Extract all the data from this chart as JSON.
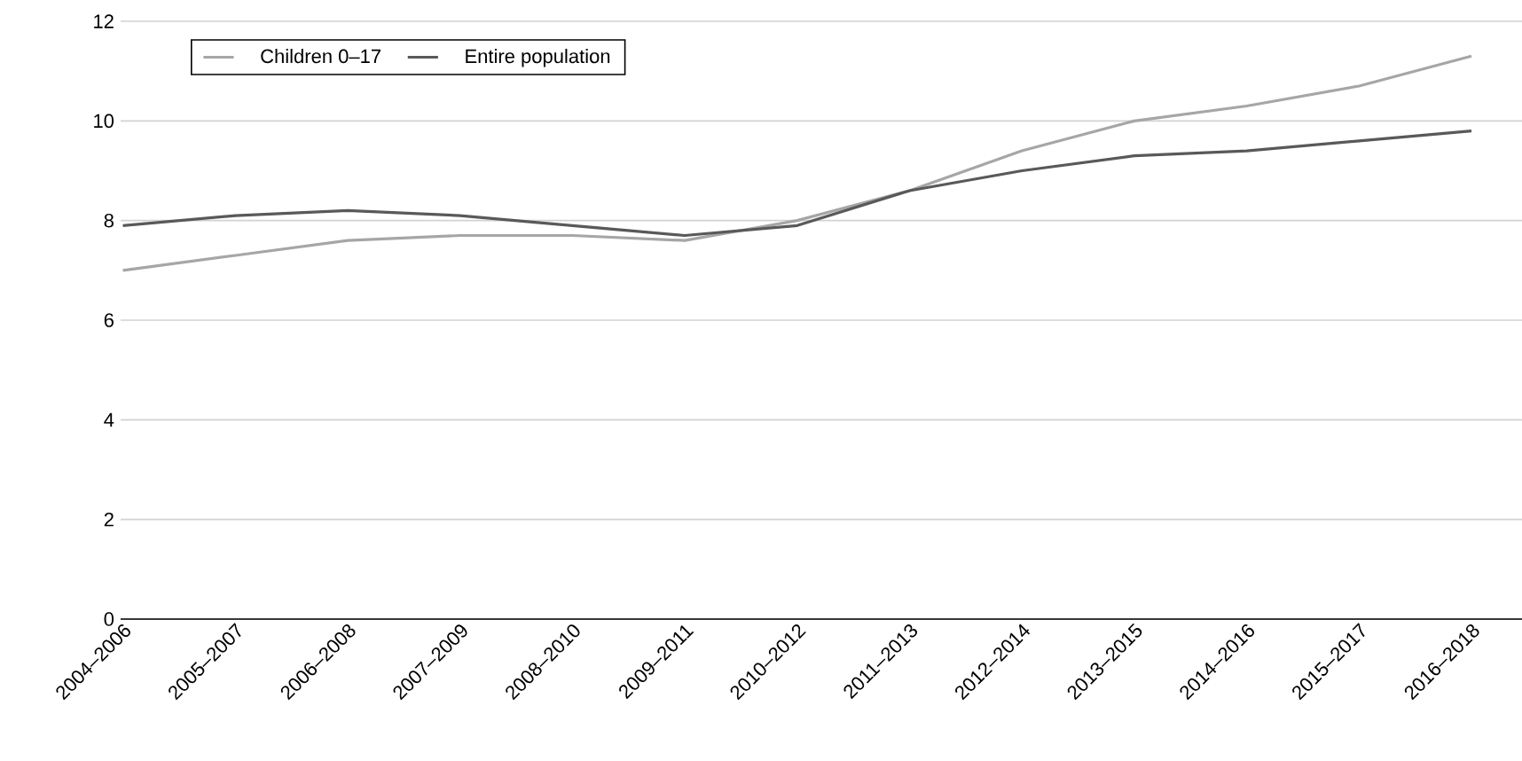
{
  "chart_data": {
    "type": "line",
    "categories": [
      "2004–2006",
      "2005–2007",
      "2006–2008",
      "2007–2009",
      "2008–2010",
      "2009–2011",
      "2010–2012",
      "2011–2013",
      "2012–2014",
      "2013–2015",
      "2014–2016",
      "2015–2017",
      "2016–2018"
    ],
    "series": [
      {
        "name": "Children 0–17",
        "color": "#a6a6a6",
        "values": [
          7.0,
          7.3,
          7.6,
          7.7,
          7.7,
          7.6,
          8.0,
          8.6,
          9.4,
          10.0,
          10.3,
          10.7,
          11.3
        ]
      },
      {
        "name": "Entire population",
        "color": "#595959",
        "values": [
          7.9,
          8.1,
          8.2,
          8.1,
          7.9,
          7.7,
          7.9,
          8.6,
          9.0,
          9.3,
          9.4,
          9.6,
          9.8
        ]
      }
    ],
    "ylim": [
      0,
      12
    ],
    "yticks": [
      0,
      2,
      4,
      6,
      8,
      10,
      12
    ],
    "grid": "y",
    "legend": "top left",
    "marker": "none",
    "line_style": "solid"
  }
}
